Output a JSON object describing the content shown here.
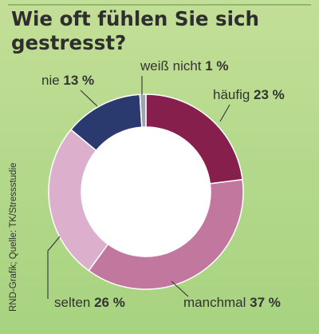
{
  "title": "Wie oft fühlen Sie sich gestresst?",
  "source": "RND-Grafik; Quelle: TK/Stressstudie",
  "chart_data": {
    "type": "pie",
    "donut": true,
    "categories": [
      "häufig",
      "manchmal",
      "selten",
      "nie",
      "weiß nicht"
    ],
    "values": [
      23,
      37,
      26,
      13,
      1
    ],
    "value_labels": [
      "23 %",
      "37 %",
      "26 %",
      "13 %",
      "1 %"
    ],
    "colors": [
      "#861f4c",
      "#c2779f",
      "#dcb0cc",
      "#2b3a6e",
      "#9aa6b4"
    ],
    "start": "12 o'clock",
    "direction": "clockwise"
  }
}
